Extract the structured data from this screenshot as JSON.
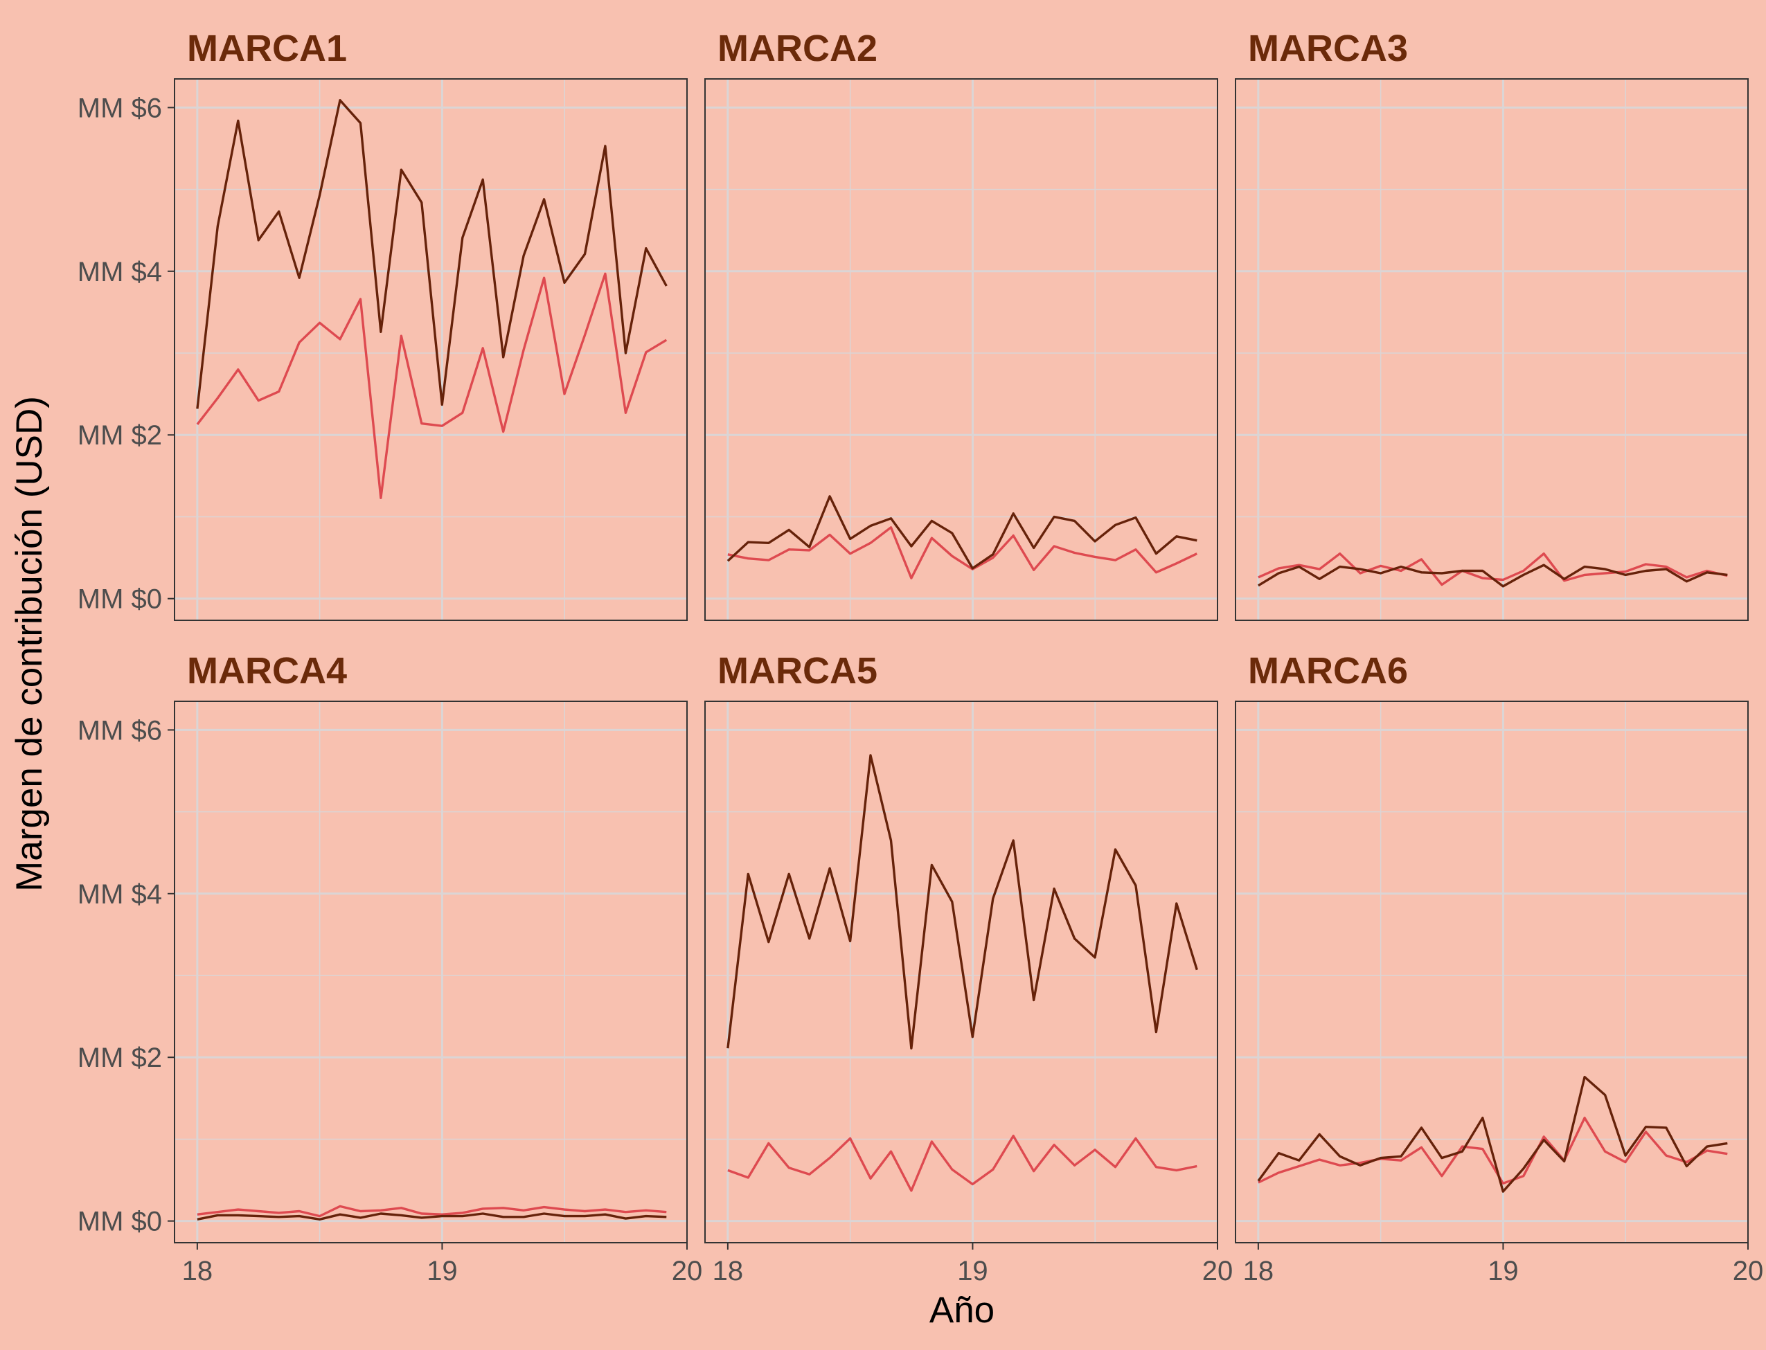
{
  "chart_data": {
    "type": "line",
    "layout": "facet-grid",
    "xlabel": "Año",
    "ylabel": "Margen de contribución (USD)",
    "xlim": [
      17.907,
      20.0
    ],
    "ylim": [
      -0.265,
      6.35
    ],
    "x_ticks": [
      18,
      19,
      20
    ],
    "x_tick_labels": [
      "18",
      "19",
      "20"
    ],
    "y_ticks": [
      0,
      2,
      4,
      6
    ],
    "y_tick_labels": [
      "MM $0",
      "MM $2",
      "MM $4",
      "MM $6"
    ],
    "x_start": 18.0,
    "x_step": 0.0833,
    "colors": {
      "background": "#F8C1B0",
      "grid": "#DBD5D5",
      "panel_border": "#333333",
      "title": "#6B2A0A",
      "dark_series": "#66220A",
      "light_series": "#DE4A50"
    },
    "panels": [
      {
        "title": "MARCA1",
        "dark": [
          2.32,
          4.55,
          5.84,
          4.38,
          4.73,
          3.92,
          4.93,
          6.09,
          5.81,
          3.26,
          5.24,
          4.84,
          2.37,
          4.41,
          5.12,
          2.95,
          4.19,
          4.88,
          3.86,
          4.21,
          5.53,
          3.0,
          4.28,
          3.82
        ],
        "light": [
          2.13,
          2.45,
          2.8,
          2.42,
          2.53,
          3.13,
          3.37,
          3.17,
          3.66,
          1.23,
          3.21,
          2.14,
          2.11,
          2.27,
          3.06,
          2.04,
          3.04,
          3.92,
          2.5,
          3.22,
          3.97,
          2.27,
          3.01,
          3.16
        ]
      },
      {
        "title": "MARCA2",
        "dark": [
          0.46,
          0.69,
          0.68,
          0.84,
          0.63,
          1.25,
          0.73,
          0.89,
          0.98,
          0.64,
          0.95,
          0.8,
          0.37,
          0.54,
          1.04,
          0.62,
          1.0,
          0.95,
          0.7,
          0.9,
          0.99,
          0.55,
          0.76,
          0.71
        ],
        "light": [
          0.54,
          0.49,
          0.47,
          0.6,
          0.59,
          0.78,
          0.55,
          0.68,
          0.87,
          0.25,
          0.74,
          0.52,
          0.36,
          0.5,
          0.77,
          0.35,
          0.64,
          0.56,
          0.51,
          0.47,
          0.6,
          0.32,
          0.43,
          0.55
        ]
      },
      {
        "title": "MARCA3",
        "dark": [
          0.16,
          0.31,
          0.39,
          0.24,
          0.39,
          0.36,
          0.31,
          0.39,
          0.32,
          0.31,
          0.34,
          0.34,
          0.15,
          0.29,
          0.41,
          0.24,
          0.39,
          0.36,
          0.29,
          0.34,
          0.36,
          0.21,
          0.32,
          0.29
        ],
        "light": [
          0.26,
          0.37,
          0.41,
          0.36,
          0.55,
          0.31,
          0.4,
          0.34,
          0.48,
          0.17,
          0.34,
          0.25,
          0.23,
          0.34,
          0.55,
          0.22,
          0.29,
          0.31,
          0.33,
          0.42,
          0.39,
          0.26,
          0.34,
          0.28
        ]
      },
      {
        "title": "MARCA4",
        "dark": [
          0.02,
          0.07,
          0.07,
          0.06,
          0.05,
          0.06,
          0.02,
          0.08,
          0.04,
          0.09,
          0.07,
          0.04,
          0.06,
          0.06,
          0.09,
          0.05,
          0.05,
          0.09,
          0.06,
          0.06,
          0.08,
          0.03,
          0.06,
          0.05
        ],
        "light": [
          0.08,
          0.11,
          0.14,
          0.12,
          0.1,
          0.12,
          0.06,
          0.18,
          0.12,
          0.13,
          0.16,
          0.09,
          0.08,
          0.1,
          0.15,
          0.16,
          0.13,
          0.17,
          0.14,
          0.12,
          0.14,
          0.11,
          0.13,
          0.11
        ]
      },
      {
        "title": "MARCA5",
        "dark": [
          2.11,
          4.24,
          3.41,
          4.24,
          3.45,
          4.31,
          3.42,
          5.69,
          4.65,
          2.11,
          4.35,
          3.9,
          2.25,
          3.94,
          4.65,
          2.7,
          4.06,
          3.45,
          3.22,
          4.54,
          4.1,
          2.31,
          3.88,
          3.07
        ],
        "light": [
          0.62,
          0.53,
          0.95,
          0.65,
          0.57,
          0.77,
          1.01,
          0.52,
          0.85,
          0.37,
          0.97,
          0.63,
          0.45,
          0.63,
          1.04,
          0.61,
          0.93,
          0.68,
          0.87,
          0.66,
          1.01,
          0.66,
          0.62,
          0.67
        ]
      },
      {
        "title": "MARCA6",
        "dark": [
          0.49,
          0.83,
          0.74,
          1.06,
          0.79,
          0.68,
          0.77,
          0.79,
          1.14,
          0.77,
          0.85,
          1.26,
          0.36,
          0.64,
          0.99,
          0.73,
          1.76,
          1.54,
          0.8,
          1.15,
          1.14,
          0.67,
          0.91,
          0.95
        ],
        "light": [
          0.47,
          0.59,
          0.67,
          0.75,
          0.68,
          0.71,
          0.76,
          0.74,
          0.9,
          0.55,
          0.91,
          0.88,
          0.46,
          0.55,
          1.03,
          0.74,
          1.26,
          0.85,
          0.72,
          1.09,
          0.8,
          0.72,
          0.86,
          0.82
        ]
      }
    ]
  }
}
